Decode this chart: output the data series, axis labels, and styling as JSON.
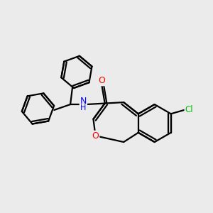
{
  "background_color": "#ebebeb",
  "bond_color": "#000000",
  "atom_colors": {
    "O": "#ff0000",
    "N": "#0000ff",
    "Cl": "#00bb00",
    "C": "#000000"
  },
  "line_width": 1.6,
  "figsize": [
    3.0,
    3.0
  ],
  "dpi": 100,
  "xlim": [
    0,
    10
  ],
  "ylim": [
    0,
    10
  ]
}
